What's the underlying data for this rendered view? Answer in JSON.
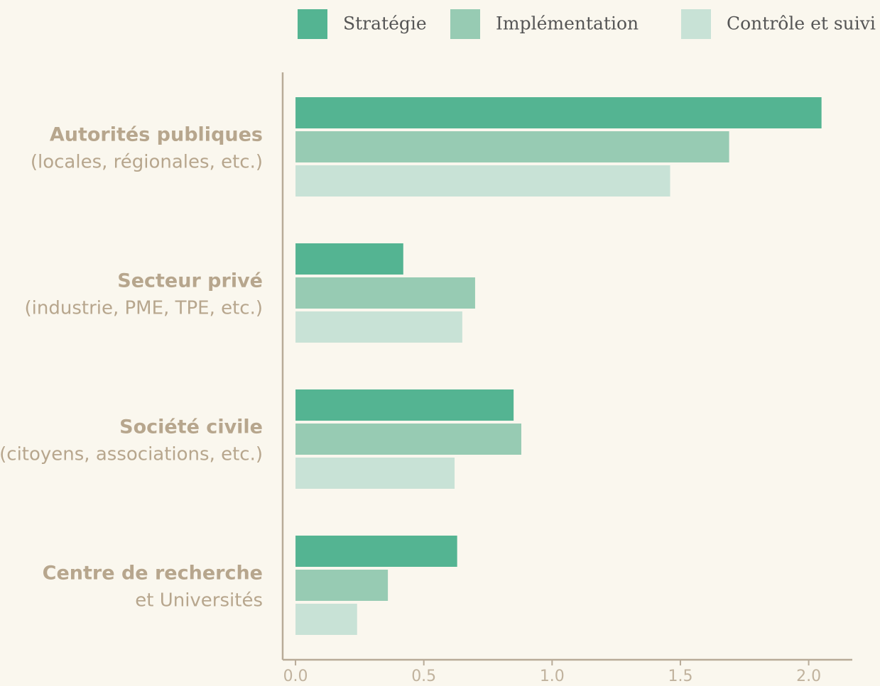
{
  "chart_data": {
    "type": "barh",
    "categories": [
      [
        "Autorités publiques",
        "(locales, régionales, etc.)"
      ],
      [
        "Secteur privé",
        "(industrie, PME, TPE, etc.)"
      ],
      [
        "Société civile",
        "(citoyens, associations, etc.)"
      ],
      [
        "Centre de recherche",
        "et Universités"
      ]
    ],
    "series": [
      {
        "name": "Stratégie",
        "color": "#54b492",
        "values": [
          2.05,
          0.42,
          0.85,
          0.63
        ]
      },
      {
        "name": "Implémentation",
        "color": "#97cbb3",
        "values": [
          1.69,
          0.7,
          0.88,
          0.36
        ]
      },
      {
        "name": "Contrôle et suivi",
        "color": "#c8e2d6",
        "values": [
          1.46,
          0.65,
          0.62,
          0.24
        ]
      }
    ],
    "xlim": [
      -0.05,
      2.17
    ],
    "xticks": [
      {
        "value": 0,
        "label": "0.0"
      },
      0.5,
      {
        "value": 1,
        "label": "1.0"
      },
      1.5,
      {
        "value": 2,
        "label": "2.0"
      }
    ],
    "legend": "top-right"
  }
}
